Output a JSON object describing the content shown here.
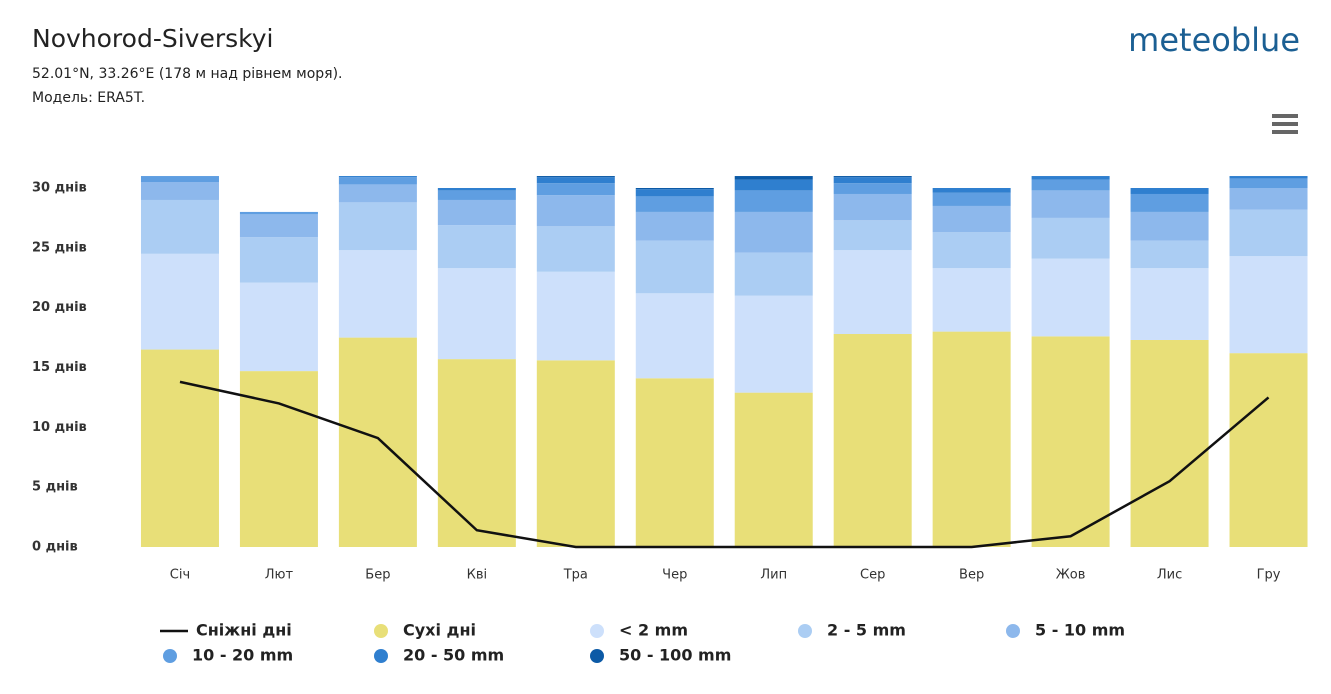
{
  "chart_data": {
    "type": "stacked_bar_line",
    "title": "Novhorod-Siverskyi",
    "subtitle": "52.01°N, 33.26°E (178 м над рівнем моря).",
    "model": "Модель: ERA5T.",
    "brand": "meteoblue",
    "categories": [
      "Січ",
      "Лют",
      "Бер",
      "Кві",
      "Тра",
      "Чер",
      "Лип",
      "Сер",
      "Вер",
      "Жов",
      "Лис",
      "Гру"
    ],
    "series": [
      {
        "name": "Сухі дні",
        "color": "#e8df78",
        "values": [
          16.5,
          14.7,
          17.5,
          15.7,
          15.6,
          14.1,
          12.9,
          17.8,
          18.0,
          17.6,
          17.3,
          16.2
        ]
      },
      {
        "name": "< 2 mm",
        "color": "#cde0fb",
        "values": [
          8.0,
          7.4,
          7.3,
          7.6,
          7.4,
          7.1,
          8.1,
          7.0,
          5.3,
          6.5,
          6.0,
          8.1
        ]
      },
      {
        "name": "2 - 5 mm",
        "color": "#abcdf3",
        "values": [
          4.5,
          3.8,
          4.0,
          3.6,
          3.8,
          4.4,
          3.6,
          2.5,
          3.0,
          3.4,
          2.3,
          3.9
        ]
      },
      {
        "name": "5 - 10 mm",
        "color": "#8db8ec",
        "values": [
          1.5,
          1.9,
          1.5,
          2.1,
          2.6,
          2.4,
          3.4,
          2.2,
          2.2,
          2.3,
          2.4,
          1.8
        ]
      },
      {
        "name": "10 - 20 mm",
        "color": "#5f9ee1",
        "values": [
          0.5,
          0.2,
          0.6,
          0.8,
          1.0,
          1.3,
          1.8,
          0.9,
          1.1,
          0.9,
          1.5,
          0.8
        ]
      },
      {
        "name": "20 - 50 mm",
        "color": "#2f7fcf",
        "values": [
          0,
          0,
          0.1,
          0.2,
          0.5,
          0.6,
          0.9,
          0.5,
          0.4,
          0.3,
          0.5,
          0.2
        ]
      },
      {
        "name": "50 - 100 mm",
        "color": "#0c5aa6",
        "values": [
          0,
          0,
          0,
          0,
          0.1,
          0.1,
          0.3,
          0.1,
          0,
          0,
          0,
          0
        ]
      }
    ],
    "line": {
      "name": "Сніжні дні",
      "color": "#111111",
      "values": [
        13.8,
        12.0,
        9.1,
        1.4,
        0,
        0,
        0,
        0,
        0,
        0.9,
        5.5,
        12.5
      ]
    },
    "ylim": [
      0,
      30
    ],
    "yticks": [
      {
        "value": 0,
        "label": "0 днів"
      },
      {
        "value": 5,
        "label": "5 днів"
      },
      {
        "value": 10,
        "label": "10 днів"
      },
      {
        "value": 15,
        "label": "15 днів"
      },
      {
        "value": 20,
        "label": "20 днів"
      },
      {
        "value": 25,
        "label": "25 днів"
      },
      {
        "value": 30,
        "label": "30 днів"
      }
    ]
  }
}
